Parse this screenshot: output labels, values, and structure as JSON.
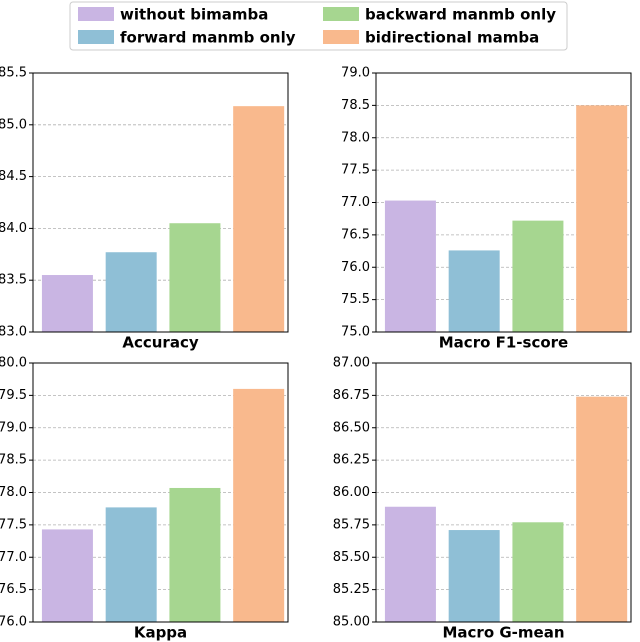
{
  "legend": {
    "entries": [
      {
        "name": "without bimamba",
        "color": "#c9b5e3"
      },
      {
        "name": "forward manmb only",
        "color": "#8fbfd6"
      },
      {
        "name": "backward manmb only",
        "color": "#a6d690"
      },
      {
        "name": "bidirectional mamba",
        "color": "#f9b98d"
      }
    ]
  },
  "chart_data": [
    {
      "type": "bar",
      "xlabel": "Accuracy",
      "values": [
        83.55,
        83.77,
        84.05,
        85.18
      ],
      "ylim": [
        83,
        85.5
      ],
      "yticks": [
        {
          "value": 83,
          "label": "83.0"
        },
        83.5,
        {
          "value": 84,
          "label": "84.0"
        },
        84.5,
        {
          "value": 85,
          "label": "85.0"
        },
        85.5
      ],
      "grid": true
    },
    {
      "type": "bar",
      "xlabel": "Macro F1-score",
      "values": [
        77.03,
        76.26,
        76.72,
        78.5
      ],
      "ylim": [
        75,
        79
      ],
      "yticks": [
        {
          "value": 75,
          "label": "75.0"
        },
        75.5,
        {
          "value": 76,
          "label": "76.0"
        },
        76.5,
        {
          "value": 77,
          "label": "77.0"
        },
        77.5,
        {
          "value": 78,
          "label": "78.0"
        },
        78.5,
        {
          "value": 79,
          "label": "79.0"
        }
      ],
      "grid": true
    },
    {
      "type": "bar",
      "xlabel": "Kappa",
      "values": [
        77.43,
        77.77,
        78.07,
        79.6
      ],
      "ylim": [
        76,
        80
      ],
      "yticks": [
        {
          "value": 76,
          "label": "76.0"
        },
        76.5,
        {
          "value": 77,
          "label": "77.0"
        },
        77.5,
        {
          "value": 78,
          "label": "78.0"
        },
        78.5,
        {
          "value": 79,
          "label": "79.0"
        },
        79.5,
        {
          "value": 80,
          "label": "80.0"
        }
      ],
      "grid": true
    },
    {
      "type": "bar",
      "xlabel": "Macro G-mean",
      "values": [
        85.89,
        85.71,
        85.77,
        86.74
      ],
      "ylim": [
        85,
        87
      ],
      "yticks": [
        {
          "value": 85,
          "label": "85.00"
        },
        85.25,
        {
          "value": 85.5,
          "label": "85.50"
        },
        85.75,
        {
          "value": 86,
          "label": "86.00"
        },
        86.25,
        {
          "value": 86.5,
          "label": "86.50"
        },
        86.75,
        {
          "value": 87,
          "label": "87.00"
        }
      ],
      "grid": true
    }
  ]
}
